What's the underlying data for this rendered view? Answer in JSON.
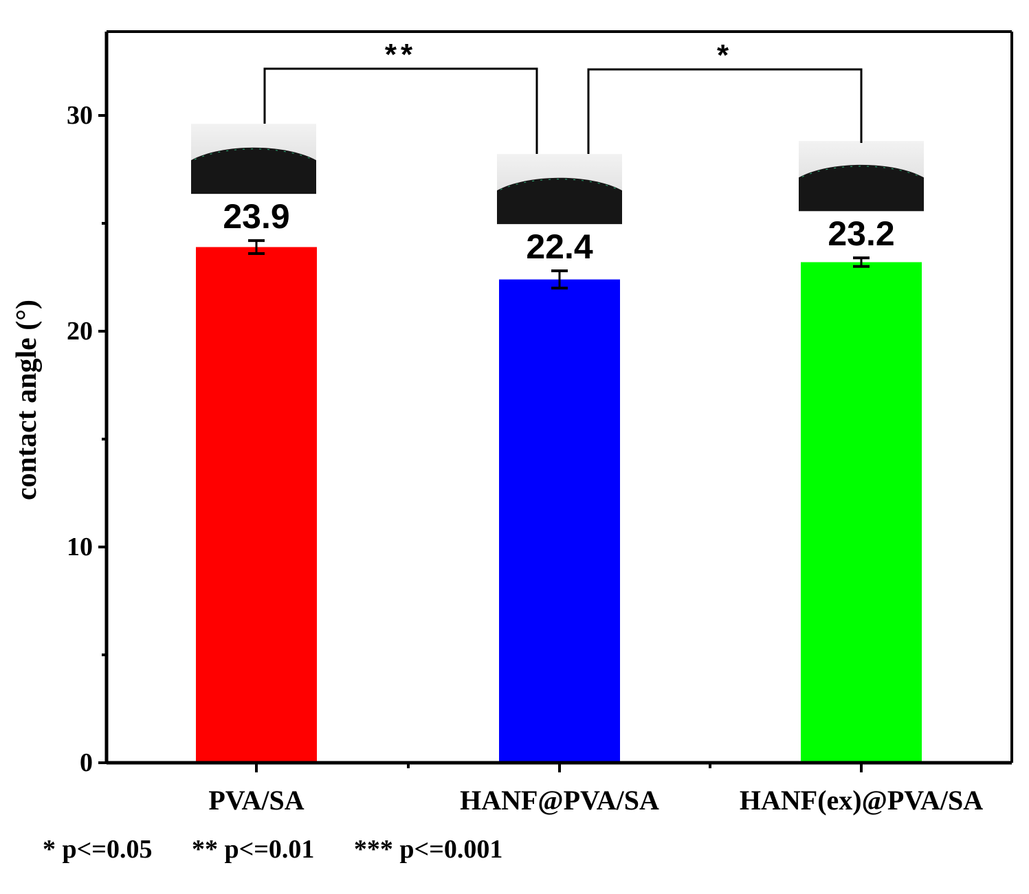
{
  "chart_data": {
    "type": "bar",
    "categories": [
      "PVA/SA",
      "HANF@PVA/SA",
      "HANF(ex)@PVA/SA"
    ],
    "values": [
      23.9,
      22.4,
      23.2
    ],
    "errors": [
      0.3,
      0.4,
      0.2
    ],
    "value_labels": [
      "23.9",
      "22.4",
      "23.2"
    ],
    "colors": [
      "#ff0000",
      "#0000ff",
      "#00ff00"
    ],
    "ylabel": "contact angle (°)",
    "xlabel": "",
    "title": "",
    "ylim": [
      0,
      30
    ],
    "yticks": [
      0,
      10,
      20,
      30
    ],
    "yticks_minor": [
      5,
      15,
      25
    ],
    "significance": [
      {
        "from": 0,
        "to": 1,
        "label": "**"
      },
      {
        "from": 1,
        "to": 2,
        "label": "*"
      }
    ],
    "insets": [
      "droplet-image",
      "droplet-image",
      "droplet-image"
    ]
  },
  "footnote": {
    "p1": "* p<=0.05",
    "p2": "** p<=0.01",
    "p3": "*** p<=0.001"
  }
}
